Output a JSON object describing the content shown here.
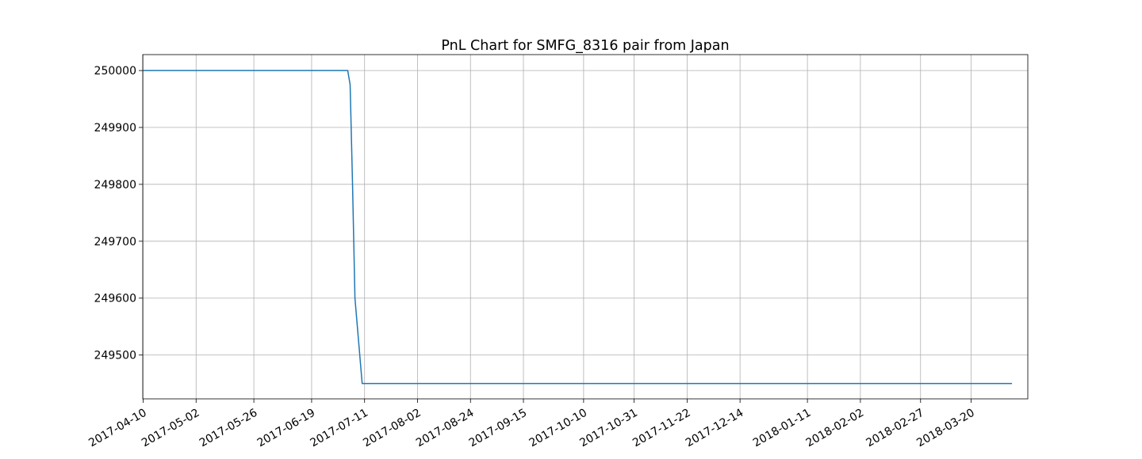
{
  "chart_data": {
    "type": "line",
    "title": "PnL Chart for SMFG_8316 pair from Japan",
    "xlabel": "",
    "ylabel": "",
    "x_tick_labels": [
      "2017-04-10",
      "2017-05-02",
      "2017-05-26",
      "2017-06-19",
      "2017-07-11",
      "2017-08-02",
      "2017-08-24",
      "2017-09-15",
      "2017-10-10",
      "2017-10-31",
      "2017-11-22",
      "2017-12-14",
      "2018-01-11",
      "2018-02-02",
      "2018-02-27",
      "2018-03-20"
    ],
    "y_tick_labels": [
      "250000",
      "249900",
      "249800",
      "249700",
      "249600",
      "249500"
    ],
    "y_ticks": [
      250000,
      249900,
      249800,
      249700,
      249600,
      249500
    ],
    "ylim": [
      249423,
      250028
    ],
    "grid": true,
    "line_color": "#1f77b4",
    "series": [
      {
        "x": [
          "2017-04-10",
          "2017-07-04",
          "2017-07-05",
          "2017-07-06",
          "2017-07-07",
          "2017-07-10",
          "2018-04-06"
        ],
        "y": [
          250000,
          250000,
          249975,
          249800,
          249600,
          249450,
          249450
        ]
      }
    ]
  }
}
